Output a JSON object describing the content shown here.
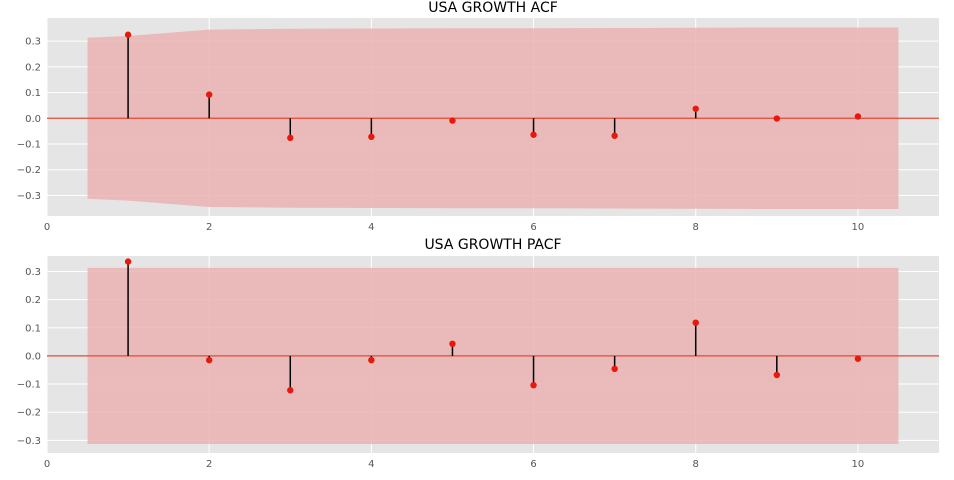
{
  "chart_data": [
    {
      "type": "stem",
      "title": "USA GROWTH ACF",
      "xlim": [
        0,
        11
      ],
      "ylim": [
        -0.38,
        0.39
      ],
      "xticks": [
        "0",
        "2",
        "4",
        "6",
        "8",
        "10"
      ],
      "yticks": [
        "0.3",
        "0.2",
        "0.1",
        "0.0",
        "−0.1",
        "−0.2",
        "−0.3"
      ],
      "lags": [
        1,
        2,
        3,
        4,
        5,
        6,
        7,
        8,
        9,
        10
      ],
      "values": [
        0.325,
        0.092,
        -0.076,
        -0.072,
        -0.009,
        -0.064,
        -0.068,
        0.037,
        -0.001,
        0.007
      ],
      "confidence_band": {
        "x": [
          0.5,
          1,
          2,
          3,
          4,
          5,
          6,
          7,
          8,
          9,
          10,
          10.5
        ],
        "upper": [
          0.313,
          0.32,
          0.345,
          0.348,
          0.349,
          0.35,
          0.35,
          0.351,
          0.352,
          0.353,
          0.353,
          0.353
        ],
        "lower": [
          -0.313,
          -0.32,
          -0.345,
          -0.348,
          -0.349,
          -0.35,
          -0.35,
          -0.351,
          -0.352,
          -0.353,
          -0.353,
          -0.353
        ]
      },
      "grid": true
    },
    {
      "type": "stem",
      "title": "USA GROWTH PACF",
      "xlim": [
        0,
        11
      ],
      "ylim": [
        -0.345,
        0.355
      ],
      "xticks": [
        "0",
        "2",
        "4",
        "6",
        "8",
        "10"
      ],
      "yticks": [
        "0.3",
        "0.2",
        "0.1",
        "0.0",
        "−0.1",
        "−0.2",
        "−0.3"
      ],
      "lags": [
        1,
        2,
        3,
        4,
        5,
        6,
        7,
        8,
        9,
        10
      ],
      "values": [
        0.335,
        -0.015,
        -0.122,
        -0.015,
        0.043,
        -0.104,
        -0.046,
        0.118,
        -0.068,
        -0.01
      ],
      "confidence_band": {
        "x": [
          0.5,
          10.5
        ],
        "upper": [
          0.313,
          0.313
        ],
        "lower": [
          -0.313,
          -0.313
        ]
      },
      "grid": true
    }
  ],
  "colors": {
    "plot_background": "#e5e5e5",
    "grid": "#ffffff",
    "band": "#eab3b1",
    "zero_line": "#e24a33",
    "stem": "#000000",
    "marker": "#e8180c",
    "tick_text": "#555555"
  }
}
